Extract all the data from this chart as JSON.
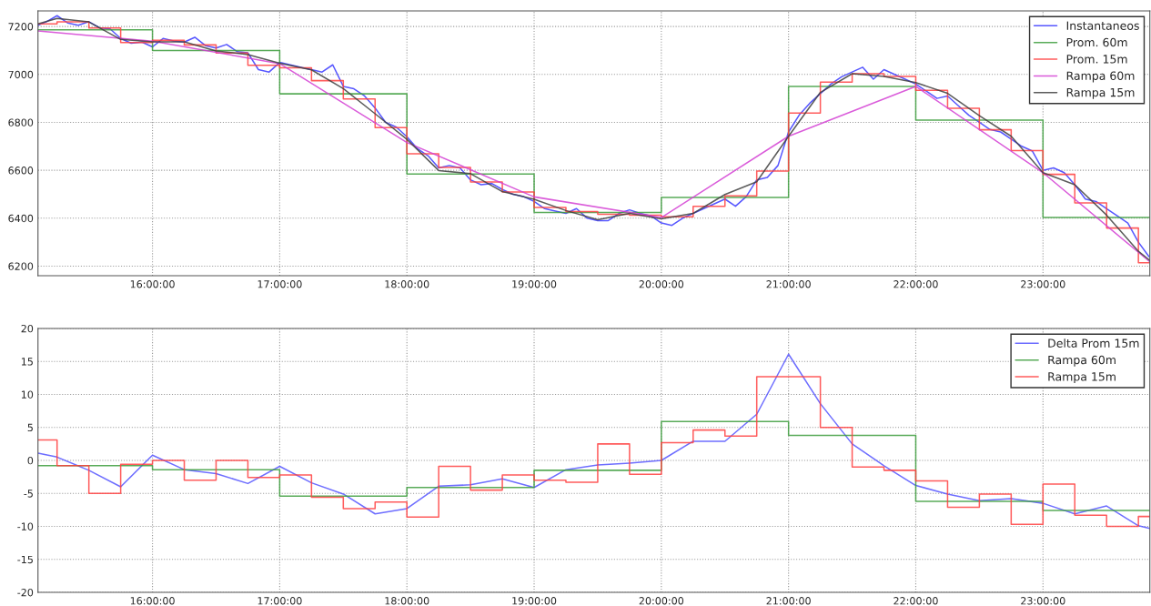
{
  "chart_data": [
    {
      "type": "line",
      "xlim": [
        15.1,
        23.84
      ],
      "ylim": [
        6160,
        7265
      ],
      "xticks": [
        {
          "value": 16,
          "label": "16:00:00"
        },
        {
          "value": 17,
          "label": "17:00:00"
        },
        {
          "value": 18,
          "label": "18:00:00"
        },
        {
          "value": 19,
          "label": "19:00:00"
        },
        {
          "value": 20,
          "label": "20:00:00"
        },
        {
          "value": 21,
          "label": "21:00:00"
        },
        {
          "value": 22,
          "label": "22:00:00"
        },
        {
          "value": 23,
          "label": "23:00:00"
        }
      ],
      "yticks": [
        6200,
        6400,
        6600,
        6800,
        7000,
        7200
      ],
      "grid": true,
      "legend": "top right",
      "line_style": "solid",
      "marker": "none",
      "series": [
        {
          "name": "Instantaneos",
          "color": "#3a3aff",
          "x": [
            15.1,
            15.167,
            15.25,
            15.333,
            15.417,
            15.5,
            15.583,
            15.667,
            15.75,
            15.833,
            15.917,
            16.0,
            16.083,
            16.167,
            16.25,
            16.333,
            16.417,
            16.5,
            16.583,
            16.667,
            16.75,
            16.833,
            16.917,
            17.0,
            17.083,
            17.167,
            17.25,
            17.333,
            17.417,
            17.5,
            17.583,
            17.667,
            17.75,
            17.833,
            17.917,
            18.0,
            18.083,
            18.167,
            18.25,
            18.333,
            18.417,
            18.5,
            18.583,
            18.667,
            18.75,
            18.833,
            18.917,
            19.0,
            19.083,
            19.167,
            19.25,
            19.333,
            19.417,
            19.5,
            19.583,
            19.667,
            19.75,
            19.833,
            19.917,
            20.0,
            20.083,
            20.167,
            20.25,
            20.333,
            20.417,
            20.5,
            20.583,
            20.667,
            20.75,
            20.833,
            20.917,
            21.0,
            21.083,
            21.167,
            21.25,
            21.333,
            21.417,
            21.5,
            21.583,
            21.667,
            21.75,
            21.833,
            21.917,
            22.0,
            22.083,
            22.167,
            22.25,
            22.333,
            22.417,
            22.5,
            22.583,
            22.667,
            22.75,
            22.833,
            22.917,
            23.0,
            23.083,
            23.167,
            23.25,
            23.333,
            23.417,
            23.5,
            23.583,
            23.667,
            23.75,
            23.833
          ],
          "values": [
            7205,
            7220,
            7245,
            7215,
            7205,
            7220,
            7195,
            7190,
            7150,
            7130,
            7135,
            7115,
            7150,
            7140,
            7135,
            7155,
            7120,
            7110,
            7125,
            7095,
            7090,
            7020,
            7010,
            7050,
            7040,
            7030,
            7020,
            7010,
            7040,
            6950,
            6940,
            6910,
            6860,
            6800,
            6780,
            6740,
            6690,
            6660,
            6610,
            6620,
            6610,
            6560,
            6540,
            6545,
            6520,
            6500,
            6490,
            6470,
            6440,
            6430,
            6420,
            6440,
            6400,
            6390,
            6390,
            6420,
            6435,
            6420,
            6410,
            6380,
            6370,
            6400,
            6420,
            6440,
            6460,
            6480,
            6450,
            6490,
            6560,
            6570,
            6620,
            6760,
            6830,
            6880,
            6920,
            6960,
            6990,
            7010,
            7030,
            6980,
            7020,
            7000,
            6980,
            6960,
            6930,
            6900,
            6910,
            6870,
            6830,
            6800,
            6770,
            6760,
            6730,
            6700,
            6680,
            6600,
            6610,
            6590,
            6540,
            6480,
            6470,
            6440,
            6410,
            6380,
            6300,
            6240
          ]
        },
        {
          "name": "Prom. 60m",
          "type": "step",
          "color": "#3c9c3c",
          "x": [
            15.1,
            16,
            17,
            18,
            19,
            20,
            21,
            22,
            23,
            23.84
          ],
          "values": [
            7186,
            7100,
            6919,
            6584,
            6424,
            6487,
            6950,
            6809,
            6403,
            6403
          ]
        },
        {
          "name": "Prom. 15m",
          "type": "step",
          "color": "#ff4040",
          "x": [
            15.1,
            15.25,
            15.5,
            15.75,
            16,
            16.25,
            16.5,
            16.75,
            17,
            17.25,
            17.5,
            17.75,
            18,
            18.25,
            18.5,
            18.75,
            19,
            19.25,
            19.5,
            19.75,
            20,
            20.25,
            20.5,
            20.75,
            21,
            21.25,
            21.5,
            21.75,
            22,
            22.25,
            22.5,
            22.75,
            23,
            23.25,
            23.5,
            23.75,
            23.84
          ],
          "values": [
            7211,
            7219,
            7194,
            7133,
            7142,
            7123,
            7089,
            7038,
            7028,
            6974,
            6898,
            6778,
            6669,
            6612,
            6551,
            6509,
            6445,
            6428,
            6416,
            6413,
            6406,
            6450,
            6493,
            6597,
            6839,
            6968,
            7003,
            6992,
            6934,
            6859,
            6769,
            6682,
            6583,
            6464,
            6359,
            6214,
            6214
          ]
        },
        {
          "name": "Rampa 60m",
          "color": "#d43fd4",
          "x": [
            15.1,
            16,
            17,
            18,
            19,
            20,
            21,
            22,
            23,
            23.84
          ],
          "values": [
            7181,
            7139,
            7045,
            6716,
            6489,
            6403,
            6742,
            6950,
            6590,
            6218
          ]
        },
        {
          "name": "Rampa 15m",
          "color": "#404040",
          "x": [
            15.1,
            15.25,
            15.5,
            15.75,
            16,
            16.25,
            16.5,
            16.75,
            17,
            17.25,
            17.5,
            17.75,
            18,
            18.25,
            18.5,
            18.75,
            19,
            19.25,
            19.5,
            19.75,
            20,
            20.25,
            20.5,
            20.75,
            21,
            21.25,
            21.5,
            21.75,
            22,
            22.25,
            22.5,
            22.75,
            23,
            23.25,
            23.5,
            23.75,
            23.84
          ],
          "values": [
            7211,
            7234,
            7219,
            7146,
            7136,
            7136,
            7098,
            7083,
            7047,
            7019,
            6941,
            6836,
            6729,
            6599,
            6586,
            6511,
            6479,
            6432,
            6394,
            6420,
            6397,
            6420,
            6499,
            6552,
            6742,
            6925,
            7003,
            6992,
            6966,
            6921,
            6828,
            6742,
            6590,
            6540,
            6413,
            6262,
            6224
          ]
        }
      ]
    },
    {
      "type": "line",
      "xlim": [
        15.1,
        23.84
      ],
      "ylim": [
        -20,
        20
      ],
      "xticks": [
        {
          "value": 16,
          "label": "16:00:00"
        },
        {
          "value": 17,
          "label": "17:00:00"
        },
        {
          "value": 18,
          "label": "18:00:00"
        },
        {
          "value": 19,
          "label": "19:00:00"
        },
        {
          "value": 20,
          "label": "20:00:00"
        },
        {
          "value": 21,
          "label": "21:00:00"
        },
        {
          "value": 22,
          "label": "22:00:00"
        },
        {
          "value": 23,
          "label": "23:00:00"
        }
      ],
      "yticks": [
        -20,
        -15,
        -10,
        -5,
        0,
        5,
        10,
        15,
        20
      ],
      "grid": true,
      "legend": "top right",
      "line_style": "solid",
      "marker": "none",
      "series": [
        {
          "name": "Delta Prom 15m",
          "color": "#5555ff",
          "x": [
            15.1,
            15.25,
            15.5,
            15.75,
            16,
            16.25,
            16.5,
            16.75,
            17,
            17.25,
            17.5,
            17.75,
            18,
            18.25,
            18.5,
            18.75,
            19,
            19.25,
            19.5,
            19.75,
            20,
            20.25,
            20.5,
            20.75,
            21,
            21.25,
            21.5,
            21.75,
            22,
            22.25,
            22.5,
            22.75,
            23,
            23.25,
            23.5,
            23.75,
            23.84
          ],
          "values": [
            1.1,
            0.5,
            -1.5,
            -4.0,
            0.8,
            -1.4,
            -2.0,
            -3.5,
            -0.9,
            -3.4,
            -5.1,
            -8.1,
            -7.3,
            -3.9,
            -3.7,
            -2.8,
            -4.1,
            -1.4,
            -0.7,
            -0.4,
            0.0,
            2.9,
            2.9,
            7.0,
            16.1,
            8.6,
            2.5,
            -0.8,
            -3.8,
            -5.1,
            -6.1,
            -5.8,
            -6.5,
            -8.1,
            -6.9,
            -9.9,
            -10.3
          ]
        },
        {
          "name": "Rampa 60m",
          "type": "step",
          "color": "#3c9c3c",
          "x": [
            15.1,
            16,
            17,
            18,
            19,
            20,
            21,
            22,
            23,
            23.84
          ],
          "values": [
            -0.8,
            -1.4,
            -5.4,
            -4.1,
            -1.5,
            5.9,
            3.8,
            -6.2,
            -7.6,
            -7.6
          ]
        },
        {
          "name": "Rampa 15m",
          "type": "step",
          "color": "#ff4040",
          "x": [
            15.1,
            15.25,
            15.5,
            15.75,
            16,
            16.25,
            16.5,
            16.75,
            17,
            17.25,
            17.5,
            17.75,
            18,
            18.25,
            18.5,
            18.75,
            19,
            19.25,
            19.5,
            19.75,
            20,
            20.25,
            20.5,
            20.75,
            21,
            21.25,
            21.5,
            21.75,
            22,
            22.25,
            22.5,
            22.75,
            23,
            23.25,
            23.5,
            23.75,
            23.84
          ],
          "values": [
            3.1,
            -0.8,
            -5.0,
            -0.6,
            0.0,
            -3.0,
            0.0,
            -2.6,
            -2.2,
            -5.6,
            -7.3,
            -6.3,
            -8.6,
            -0.9,
            -4.5,
            -2.2,
            -3.0,
            -3.3,
            2.5,
            -2.1,
            2.7,
            4.6,
            3.7,
            12.7,
            12.7,
            5.0,
            -1.0,
            -1.5,
            -3.1,
            -7.1,
            -5.1,
            -9.7,
            -3.6,
            -8.3,
            -10.0,
            -8.5,
            -8.5
          ]
        }
      ]
    }
  ]
}
